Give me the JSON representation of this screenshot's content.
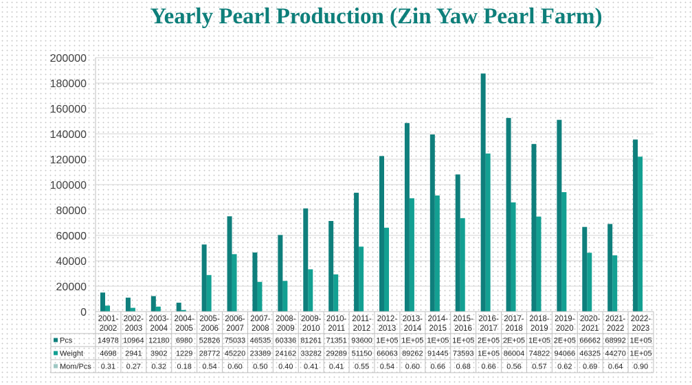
{
  "chart_data": {
    "type": "bar",
    "title": "Yearly Pearl Production (Zin Yaw Pearl Farm)",
    "xlabel": "",
    "ylabel": "",
    "ylim": [
      0,
      200000
    ],
    "yticks": [
      "0",
      "20000",
      "40000",
      "60000",
      "80000",
      "100000",
      "120000",
      "140000",
      "160000",
      "180000",
      "200000"
    ],
    "categories": [
      [
        "2001-",
        "2002"
      ],
      [
        "2002-",
        "2003"
      ],
      [
        "2003-",
        "2004"
      ],
      [
        "2004-",
        "2005"
      ],
      [
        "2005-",
        "2006"
      ],
      [
        "2006-",
        "2007"
      ],
      [
        "2007-",
        "2008"
      ],
      [
        "2008-",
        "2009"
      ],
      [
        "2009-",
        "2010"
      ],
      [
        "2010-",
        "2011"
      ],
      [
        "2011-",
        "2012"
      ],
      [
        "2012-",
        "2013"
      ],
      [
        "2013-",
        "2014"
      ],
      [
        "2014-",
        "2015"
      ],
      [
        "2015-",
        "2016"
      ],
      [
        "2016-",
        "2017"
      ],
      [
        "2017-",
        "2018"
      ],
      [
        "2018-",
        "2019"
      ],
      [
        "2019-",
        "2020"
      ],
      [
        "2020-",
        "2021"
      ],
      [
        "2021-",
        "2022"
      ],
      [
        "2022-",
        "2023"
      ]
    ],
    "series": [
      {
        "name": "Pcs",
        "color": "#0f7f7c",
        "values": [
          14978,
          10964,
          12180,
          6980,
          52826,
          75033,
          46535,
          60336,
          81261,
          71351,
          93600,
          122500,
          148500,
          139500,
          108000,
          187500,
          152500,
          132000,
          151000,
          66662,
          68992,
          135500
        ],
        "labels": [
          "14978",
          "10964",
          "12180",
          "6980",
          "52826",
          "75033",
          "46535",
          "60336",
          "81261",
          "71351",
          "93600",
          "1E+05",
          "1E+05",
          "1E+05",
          "1E+05",
          "2E+05",
          "2E+05",
          "1E+05",
          "2E+05",
          "66662",
          "68992",
          "1E+05"
        ]
      },
      {
        "name": "Weight",
        "color": "#13a092",
        "values": [
          4698,
          2941,
          3902,
          1229,
          28772,
          45220,
          23389,
          24162,
          33282,
          29289,
          51150,
          66063,
          89262,
          91445,
          73593,
          124500,
          86004,
          74822,
          94066,
          46325,
          44270,
          122000
        ],
        "labels": [
          "4698",
          "2941",
          "3902",
          "1229",
          "28772",
          "45220",
          "23389",
          "24162",
          "33282",
          "29289",
          "51150",
          "66063",
          "89262",
          "91445",
          "73593",
          "1E+05",
          "86004",
          "74822",
          "94066",
          "46325",
          "44270",
          "1E+05"
        ]
      },
      {
        "name": "Mom/Pcs",
        "color": "#9fc8c4",
        "values": [
          0.31,
          0.27,
          0.32,
          0.18,
          0.54,
          0.6,
          0.5,
          0.4,
          0.41,
          0.41,
          0.55,
          0.54,
          0.6,
          0.66,
          0.68,
          0.66,
          0.56,
          0.57,
          0.62,
          0.69,
          0.64,
          0.9
        ],
        "labels": [
          "0.31",
          "0.27",
          "0.32",
          "0.18",
          "0.54",
          "0.60",
          "0.50",
          "0.40",
          "0.41",
          "0.41",
          "0.55",
          "0.54",
          "0.60",
          "0.66",
          "0.68",
          "0.66",
          "0.56",
          "0.57",
          "0.62",
          "0.69",
          "0.64",
          "0.90"
        ]
      }
    ],
    "grid": true,
    "legend": "data-table-below"
  }
}
